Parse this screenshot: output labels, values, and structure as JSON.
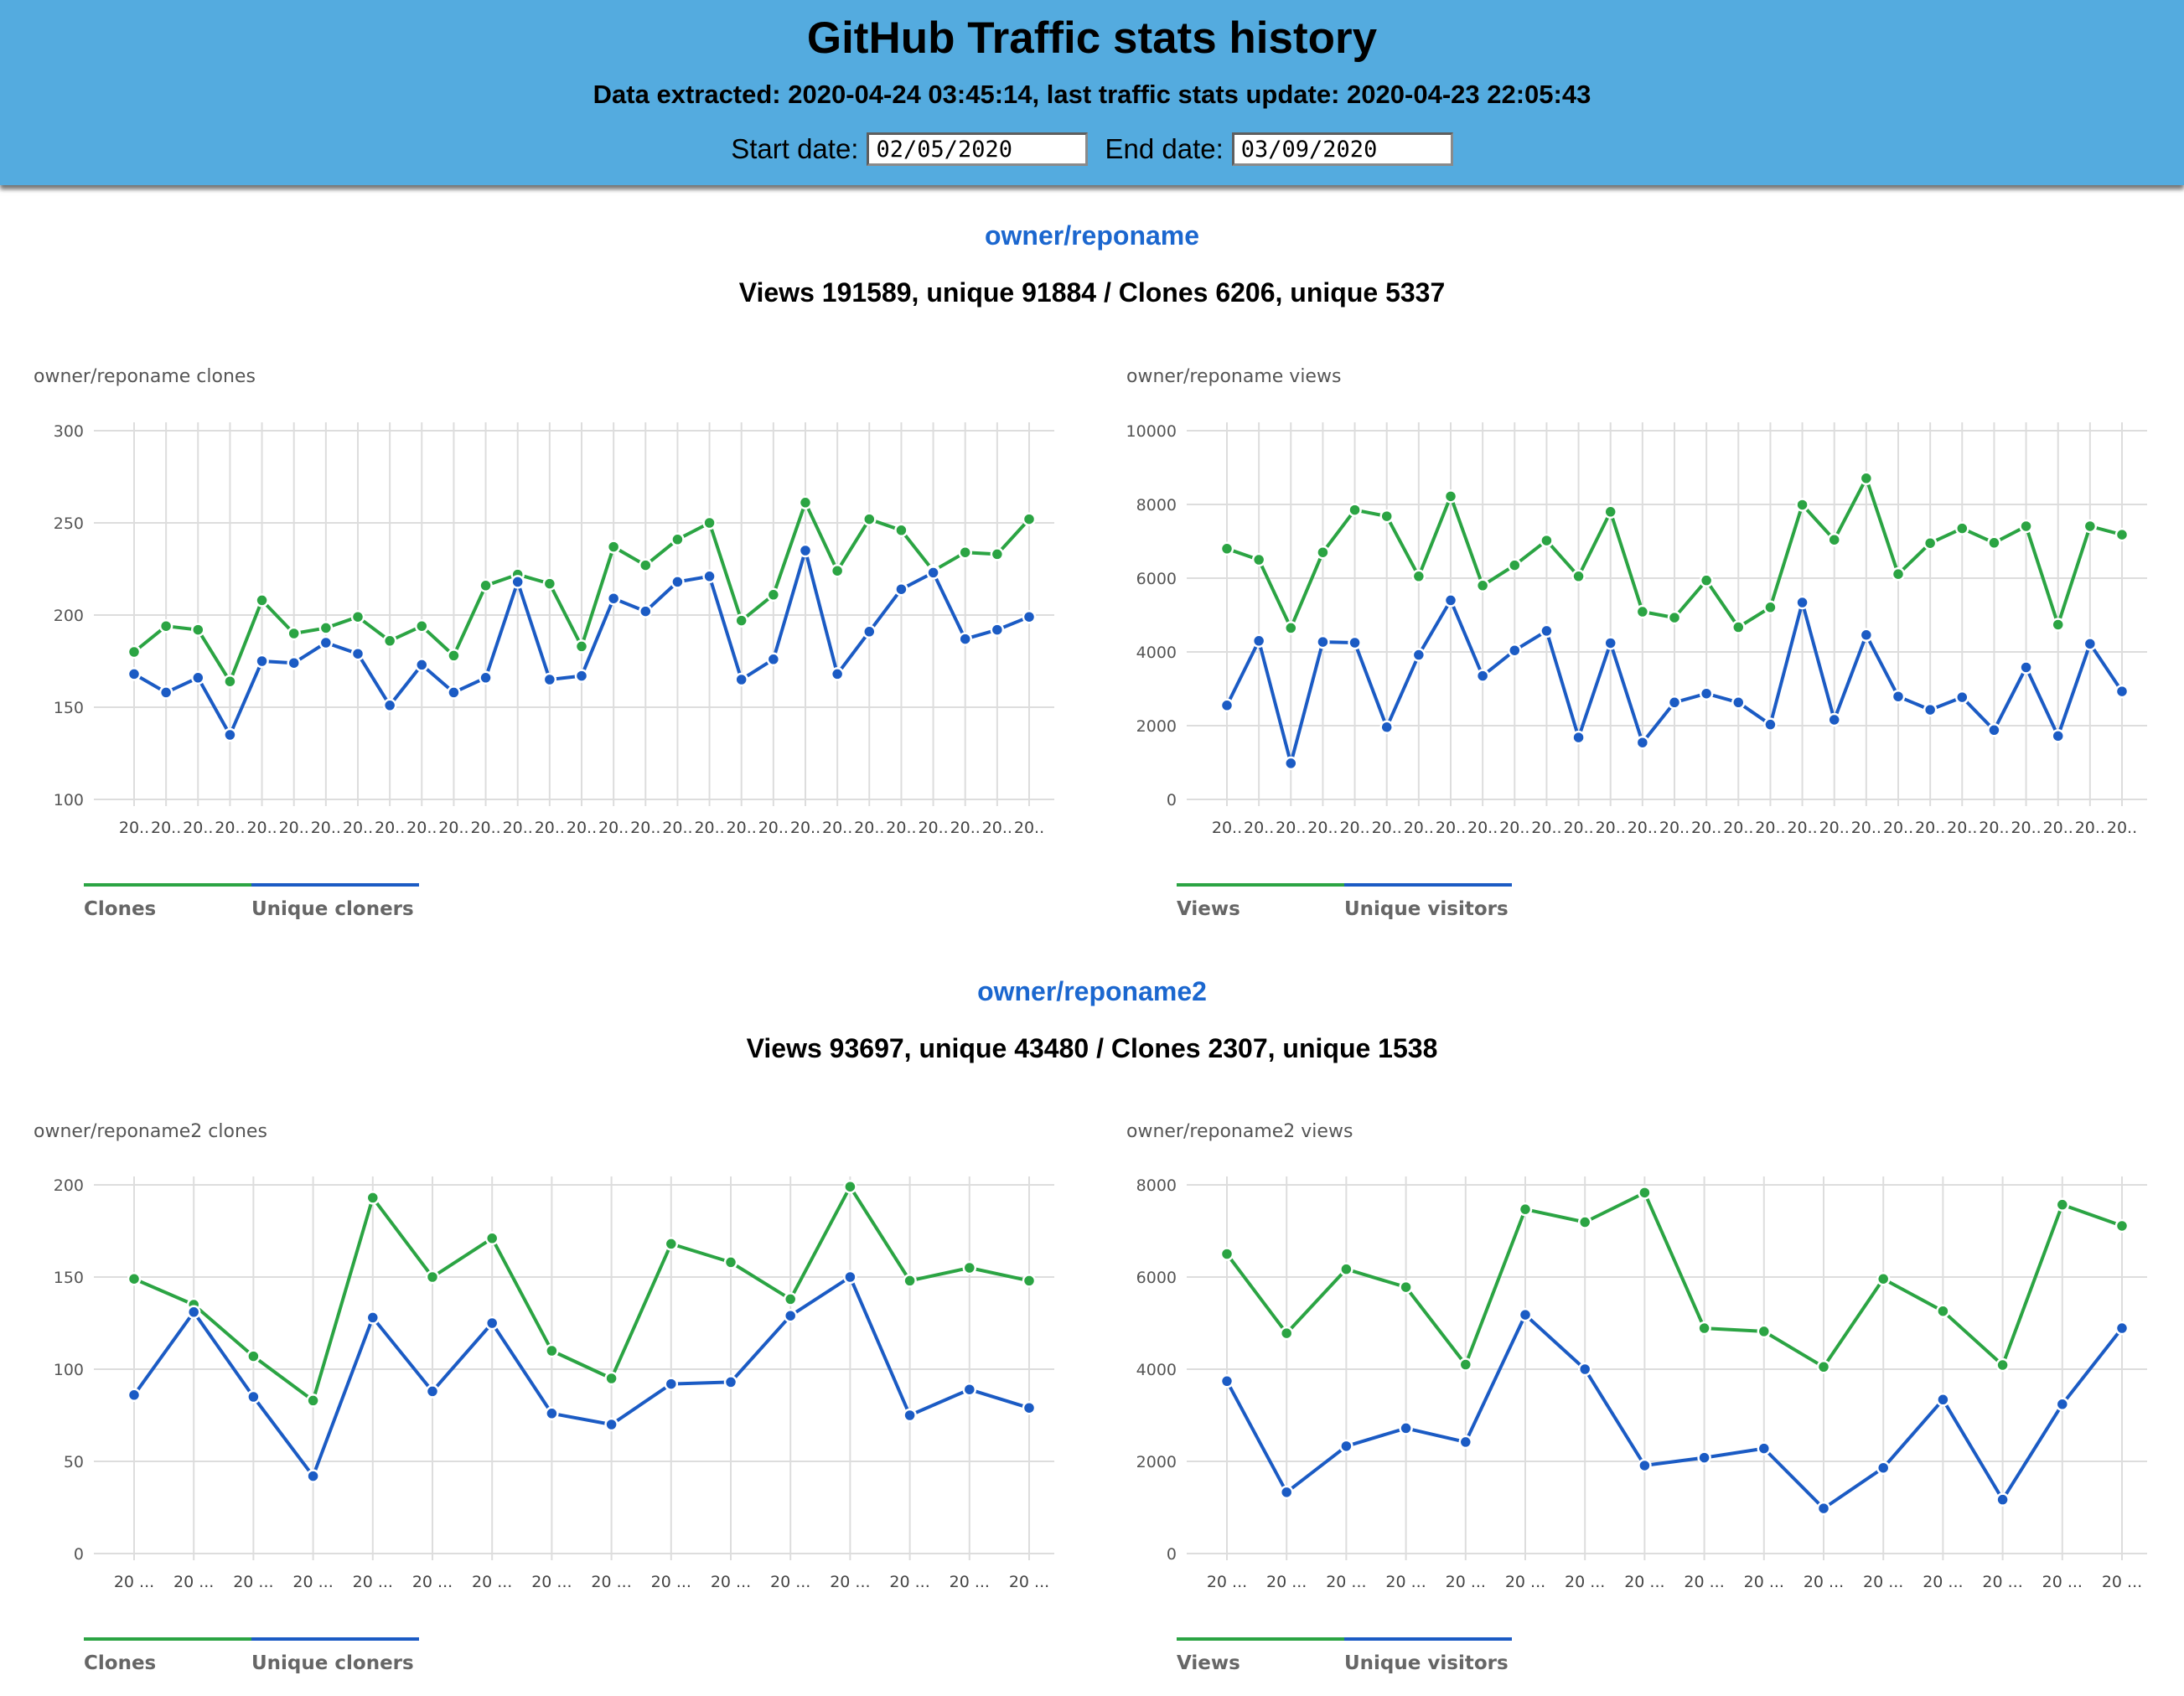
{
  "header": {
    "title": "GitHub Traffic stats history",
    "extracted": "Data extracted: 2020-04-24 03:45:14, last traffic stats update: 2020-04-23 22:05:43",
    "start_label": "Start date:",
    "start_value": "02/05/2020",
    "end_label": "End date:",
    "end_value": "03/09/2020"
  },
  "colors": {
    "header_bg": "#54abdf",
    "link": "#1b67cf",
    "green": "#2ba443",
    "blue": "#1b5bc4"
  },
  "repos": [
    {
      "name": "owner/reponame",
      "totals": "Views 191589, unique 91884 / Clones 6206, unique 5337"
    },
    {
      "name": "owner/reponame2",
      "totals": "Views 93697, unique 43480 / Clones 2307, unique 1538"
    }
  ],
  "chart_data": [
    {
      "type": "line",
      "title": "owner/reponame clones",
      "tick_label": "20..",
      "ylim": [
        100,
        300
      ],
      "yticks": [
        100,
        150,
        200,
        250,
        300
      ],
      "grid": true,
      "legend_position": "bottom-left",
      "series": [
        {
          "name": "Clones",
          "color": "#2ba443",
          "values": [
            180,
            194,
            192,
            164,
            208,
            190,
            193,
            199,
            186,
            194,
            178,
            216,
            222,
            217,
            183,
            237,
            227,
            241,
            250,
            197,
            211,
            261,
            224,
            252,
            246,
            224,
            234,
            233,
            252
          ]
        },
        {
          "name": "Unique cloners",
          "color": "#1b5bc4",
          "values": [
            168,
            158,
            166,
            135,
            175,
            174,
            185,
            179,
            151,
            173,
            158,
            166,
            218,
            165,
            167,
            209,
            202,
            218,
            221,
            165,
            176,
            235,
            168,
            191,
            214,
            223,
            187,
            192,
            199
          ]
        }
      ]
    },
    {
      "type": "line",
      "title": "owner/reponame views",
      "tick_label": "20..",
      "ylim": [
        0,
        10000
      ],
      "yticks": [
        0,
        2000,
        4000,
        6000,
        8000,
        10000
      ],
      "grid": true,
      "legend_position": "bottom-left",
      "series": [
        {
          "name": "Views",
          "color": "#2ba443",
          "values": [
            6800,
            6500,
            4650,
            6700,
            7850,
            7680,
            6050,
            8220,
            5800,
            6350,
            7020,
            6050,
            7800,
            5090,
            4930,
            5940,
            4670,
            5210,
            7990,
            7040,
            8710,
            6110,
            6950,
            7350,
            6960,
            7410,
            4740,
            7410,
            7180
          ]
        },
        {
          "name": "Unique visitors",
          "color": "#1b5bc4",
          "values": [
            2550,
            4300,
            980,
            4270,
            4250,
            1960,
            3920,
            5400,
            3350,
            4040,
            4570,
            1680,
            4240,
            1540,
            2630,
            2870,
            2630,
            2030,
            5340,
            2160,
            4460,
            2790,
            2430,
            2770,
            1880,
            3580,
            1720,
            4220,
            2930
          ]
        }
      ]
    },
    {
      "type": "line",
      "title": "owner/reponame2 clones",
      "tick_label": "20 ...",
      "ylim": [
        0,
        200
      ],
      "yticks": [
        0,
        50,
        100,
        150,
        200
      ],
      "grid": true,
      "legend_position": "bottom-left",
      "series": [
        {
          "name": "Clones",
          "color": "#2ba443",
          "values": [
            149,
            135,
            107,
            83,
            193,
            150,
            171,
            110,
            95,
            168,
            158,
            138,
            199,
            148,
            155,
            148
          ]
        },
        {
          "name": "Unique cloners",
          "color": "#1b5bc4",
          "values": [
            86,
            131,
            85,
            42,
            128,
            88,
            125,
            76,
            70,
            92,
            93,
            129,
            150,
            75,
            89,
            79
          ]
        }
      ]
    },
    {
      "type": "line",
      "title": "owner/reponame2 views",
      "tick_label": "20 ...",
      "ylim": [
        0,
        8000
      ],
      "yticks": [
        0,
        2000,
        4000,
        6000,
        8000
      ],
      "grid": true,
      "legend_position": "bottom-left",
      "series": [
        {
          "name": "Views",
          "color": "#2ba443",
          "values": [
            6500,
            4780,
            6170,
            5780,
            4100,
            7470,
            7190,
            7830,
            4890,
            4820,
            4050,
            5960,
            5260,
            4090,
            7570,
            7110
          ]
        },
        {
          "name": "Unique visitors",
          "color": "#1b5bc4",
          "values": [
            3740,
            1330,
            2330,
            2720,
            2420,
            5180,
            4000,
            1910,
            2080,
            2280,
            980,
            1860,
            3340,
            1170,
            3240,
            4890
          ]
        }
      ]
    }
  ]
}
